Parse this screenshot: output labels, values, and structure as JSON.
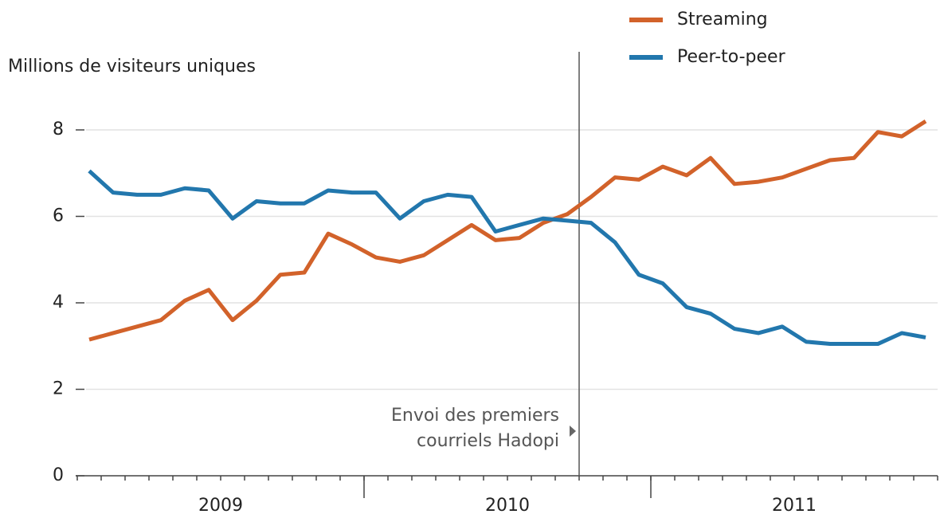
{
  "chart_data": {
    "type": "line",
    "y_label": "Millions de visiteurs uniques",
    "categories": [
      null,
      null,
      null,
      null,
      null,
      null,
      null,
      null,
      null,
      null,
      null,
      null,
      null,
      null,
      null,
      null,
      null,
      null,
      null,
      null,
      null,
      null,
      null,
      null,
      null,
      null,
      null,
      null,
      null,
      null,
      null,
      null,
      null,
      null,
      null,
      null
    ],
    "x_groups": [
      "2009",
      "2010",
      "2011"
    ],
    "series": [
      {
        "name": "Streaming",
        "color": "#d2622a",
        "values": [
          3.15,
          3.3,
          3.45,
          3.6,
          4.05,
          4.3,
          3.6,
          4.05,
          4.65,
          4.7,
          5.6,
          5.35,
          5.05,
          4.95,
          5.1,
          5.45,
          5.8,
          5.45,
          5.5,
          5.85,
          6.05,
          6.45,
          6.9,
          6.85,
          7.15,
          6.95,
          7.35,
          6.75,
          6.8,
          6.9,
          7.1,
          7.3,
          7.35,
          7.95,
          7.85,
          8.2
        ]
      },
      {
        "name": "Peer-to-peer",
        "color": "#2277ad",
        "values": [
          7.05,
          6.55,
          6.5,
          6.5,
          6.65,
          6.6,
          5.95,
          6.35,
          6.3,
          6.3,
          6.6,
          6.55,
          6.55,
          5.95,
          6.35,
          6.5,
          6.45,
          5.65,
          5.8,
          5.95,
          5.9,
          5.85,
          5.4,
          4.65,
          4.45,
          3.9,
          3.75,
          3.4,
          3.3,
          3.45,
          3.1,
          3.05,
          3.05,
          3.05,
          3.3,
          3.2
        ]
      }
    ],
    "ylim": [
      0,
      8.6
    ],
    "yticks": [
      0,
      2,
      4,
      6,
      8
    ],
    "grid": true,
    "vline": {
      "x": 20.5,
      "label": [
        "Envoi des premiers",
        "courriels Hadopi"
      ]
    }
  }
}
